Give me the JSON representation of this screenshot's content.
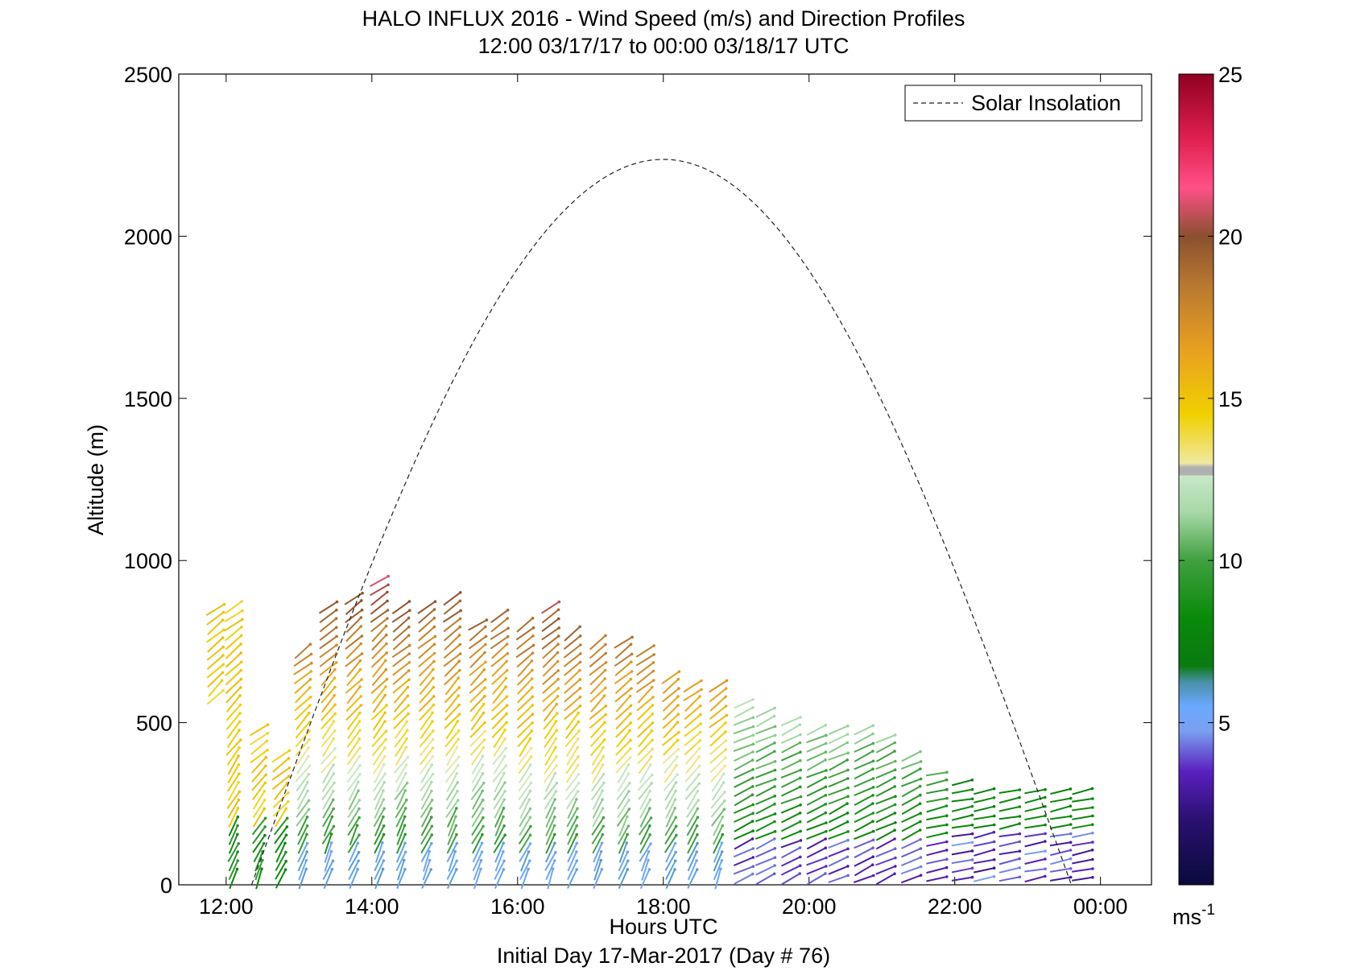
{
  "chart_data": {
    "type": "vector-field-scatter",
    "title": "HALO INFLUX 2016 - Wind Speed (m/s) and Direction Profiles",
    "subtitle": "12:00 03/17/17 to 00:00 03/18/17  UTC",
    "xlabel": "Hours UTC",
    "xlabel2": "Initial Day 17-Mar-2017 (Day # 76)",
    "ylabel": "Altitude (m)",
    "xlim": [
      11.35,
      24.7
    ],
    "ylim": [
      0,
      2500
    ],
    "xticks": [
      12,
      14,
      16,
      18,
      20,
      22,
      24
    ],
    "xtick_labels": [
      "12:00",
      "14:00",
      "16:00",
      "18:00",
      "20:00",
      "22:00",
      "00:00"
    ],
    "yticks": [
      0,
      500,
      1000,
      1500,
      2000,
      2500
    ],
    "ytick_labels": [
      "0",
      "500",
      "1000",
      "1500",
      "2000",
      "2500"
    ],
    "colorbar": {
      "range": [
        0,
        25
      ],
      "ticks": [
        5,
        10,
        15,
        20,
        25
      ],
      "tick_labels": [
        "5",
        "10",
        "15",
        "20",
        "25"
      ],
      "unit_base": "ms",
      "unit_exp": "-1"
    },
    "legend": {
      "label": "Solar Insolation",
      "placement": "top-right",
      "style": "dashed black"
    },
    "solar_insolation_curve": {
      "x_start": 12.35,
      "x_peak": 18.0,
      "x_end": 23.6,
      "peak_altitude_equiv": 2237,
      "end_altitude_equiv": 0
    },
    "wind_profiles": [
      {
        "hour": 11.85,
        "top": 860,
        "base": 560
      },
      {
        "hour": 12.1,
        "top": 860,
        "base": 0
      },
      {
        "hour": 12.45,
        "top": 500,
        "base": 0
      },
      {
        "hour": 12.75,
        "top": 420,
        "base": 0
      },
      {
        "hour": 13.05,
        "top": 740,
        "base": 0
      },
      {
        "hour": 13.4,
        "top": 870,
        "base": 0
      },
      {
        "hour": 13.75,
        "top": 900,
        "base": 0
      },
      {
        "hour": 14.1,
        "top": 950,
        "base": 0
      },
      {
        "hour": 14.4,
        "top": 860,
        "base": 0
      },
      {
        "hour": 14.75,
        "top": 870,
        "base": 0
      },
      {
        "hour": 15.1,
        "top": 900,
        "base": 0
      },
      {
        "hour": 15.45,
        "top": 820,
        "base": 0
      },
      {
        "hour": 15.75,
        "top": 830,
        "base": 0
      },
      {
        "hour": 16.1,
        "top": 820,
        "base": 0
      },
      {
        "hour": 16.45,
        "top": 870,
        "base": 0
      },
      {
        "hour": 16.75,
        "top": 790,
        "base": 0
      },
      {
        "hour": 17.1,
        "top": 760,
        "base": 0
      },
      {
        "hour": 17.45,
        "top": 750,
        "base": 0
      },
      {
        "hour": 17.75,
        "top": 720,
        "base": 0
      },
      {
        "hour": 18.1,
        "top": 640,
        "base": 0
      },
      {
        "hour": 18.4,
        "top": 620,
        "base": 0
      },
      {
        "hour": 18.75,
        "top": 620,
        "base": 0
      },
      {
        "hour": 19.1,
        "top": 580,
        "base": 0
      },
      {
        "hour": 19.4,
        "top": 540,
        "base": 0
      },
      {
        "hour": 19.75,
        "top": 510,
        "base": 0
      },
      {
        "hour": 20.1,
        "top": 500,
        "base": 0
      },
      {
        "hour": 20.4,
        "top": 500,
        "base": 0
      },
      {
        "hour": 20.75,
        "top": 500,
        "base": 0
      },
      {
        "hour": 21.05,
        "top": 460,
        "base": 0
      },
      {
        "hour": 21.4,
        "top": 400,
        "base": 0
      },
      {
        "hour": 21.75,
        "top": 360,
        "base": 0
      },
      {
        "hour": 22.1,
        "top": 320,
        "base": 0
      },
      {
        "hour": 22.4,
        "top": 300,
        "base": 0
      },
      {
        "hour": 22.75,
        "top": 300,
        "base": 0
      },
      {
        "hour": 23.1,
        "top": 300,
        "base": 0
      },
      {
        "hour": 23.45,
        "top": 300,
        "base": 0
      },
      {
        "hour": 23.75,
        "top": 300,
        "base": 0
      }
    ]
  }
}
